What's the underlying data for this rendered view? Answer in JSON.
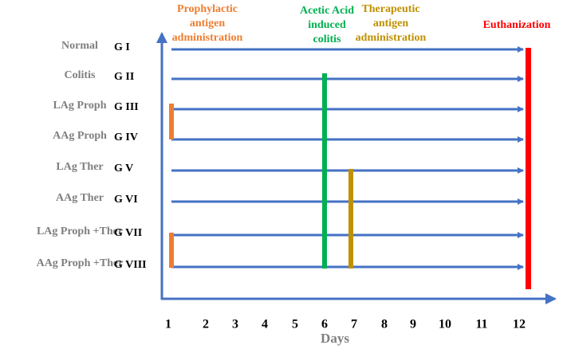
{
  "phases": [
    {
      "label": [
        "Prophylactic",
        "antigen",
        "administration"
      ]
    },
    {
      "label": [
        "Acetic Acid",
        "induced",
        "colitis"
      ]
    },
    {
      "label": [
        "Therapeutic",
        "antigen",
        "administration"
      ]
    },
    {
      "label": [
        "Euthanization"
      ]
    }
  ],
  "groups": [
    {
      "name": "Normal",
      "group": "G I"
    },
    {
      "name": "Colitis",
      "group": "G II"
    },
    {
      "name": "LAg Proph",
      "group": "G III"
    },
    {
      "name": "AAg Proph",
      "group": "G IV"
    },
    {
      "name": "LAg Ther",
      "group": "G V"
    },
    {
      "name": "AAg Ther",
      "group": "G VI"
    },
    {
      "name": "LAg Proph +Ther",
      "group": "G VII"
    },
    {
      "name": "AAg Proph +Ther",
      "group": "G VIII"
    }
  ],
  "days": [
    "1",
    "2",
    "3",
    "4",
    "5",
    "6",
    "7",
    "8",
    "9",
    "10",
    "11",
    "12"
  ],
  "x_axis_label": "Days"
}
